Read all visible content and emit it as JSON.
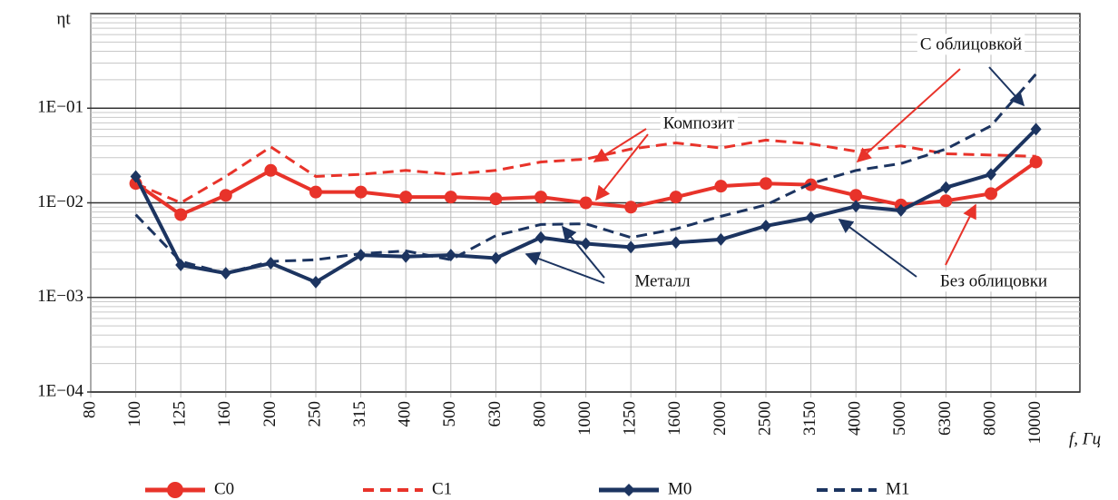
{
  "chart_data": {
    "type": "line",
    "y_label": "ηt",
    "x_label": "f, Гц",
    "categories": [
      "80",
      "100",
      "125",
      "160",
      "200",
      "250",
      "315",
      "400",
      "500",
      "630",
      "800",
      "1000",
      "1250",
      "1600",
      "2000",
      "2500",
      "3150",
      "4000",
      "5000",
      "6300",
      "8000",
      "10000"
    ],
    "log_y": true,
    "grid": true,
    "minor_grid": true,
    "ylim": [
      0.0001,
      1
    ],
    "yticks": [
      {
        "value": 0.0001,
        "label": "1E−04"
      },
      {
        "value": 0.001,
        "label": "1E−03"
      },
      {
        "value": 0.01,
        "label": "1E−02"
      },
      {
        "value": 0.1,
        "label": "1E−01"
      }
    ],
    "series": [
      {
        "name": "C0",
        "color": "#e8332a",
        "marker": "circle",
        "dashed": false,
        "values": [
          null,
          0.016,
          0.0075,
          0.012,
          0.022,
          0.013,
          0.013,
          0.0115,
          0.0115,
          0.011,
          0.0115,
          0.01,
          0.009,
          0.0115,
          0.015,
          0.016,
          0.0155,
          0.012,
          0.0095,
          0.0105,
          0.0125,
          0.027
        ]
      },
      {
        "name": "C1",
        "color": "#e8332a",
        "marker": null,
        "dashed": true,
        "values": [
          null,
          0.016,
          0.01,
          0.019,
          0.039,
          0.019,
          0.02,
          0.022,
          0.02,
          0.022,
          0.027,
          0.029,
          0.037,
          0.043,
          0.038,
          0.046,
          0.042,
          0.035,
          0.04,
          0.033,
          0.032,
          0.031
        ]
      },
      {
        "name": "M0",
        "color": "#1c3460",
        "marker": "diamond",
        "dashed": false,
        "values": [
          null,
          0.019,
          0.0022,
          0.0018,
          0.0023,
          0.00145,
          0.0028,
          0.0027,
          0.0028,
          0.0026,
          0.0043,
          0.0037,
          0.0034,
          0.0038,
          0.0041,
          0.0057,
          0.007,
          0.0092,
          0.0083,
          0.0145,
          0.02,
          0.06
        ]
      },
      {
        "name": "M1",
        "color": "#1c3460",
        "marker": null,
        "dashed": true,
        "values": [
          null,
          0.0075,
          0.0024,
          0.0018,
          0.0024,
          0.0025,
          0.0029,
          0.0031,
          0.0025,
          0.0045,
          0.0059,
          0.006,
          0.0043,
          0.0053,
          0.0072,
          0.0095,
          0.016,
          0.022,
          0.026,
          0.037,
          0.065,
          0.23
        ]
      }
    ],
    "annotations": [
      {
        "text": "С облицовкой",
        "color": "#2e3192"
      },
      {
        "text": "Композит",
        "color": "#e8332a"
      },
      {
        "text": "Металл",
        "color": "#2e3192"
      },
      {
        "text": "Без облицовки",
        "color": "#2e3192"
      }
    ]
  }
}
